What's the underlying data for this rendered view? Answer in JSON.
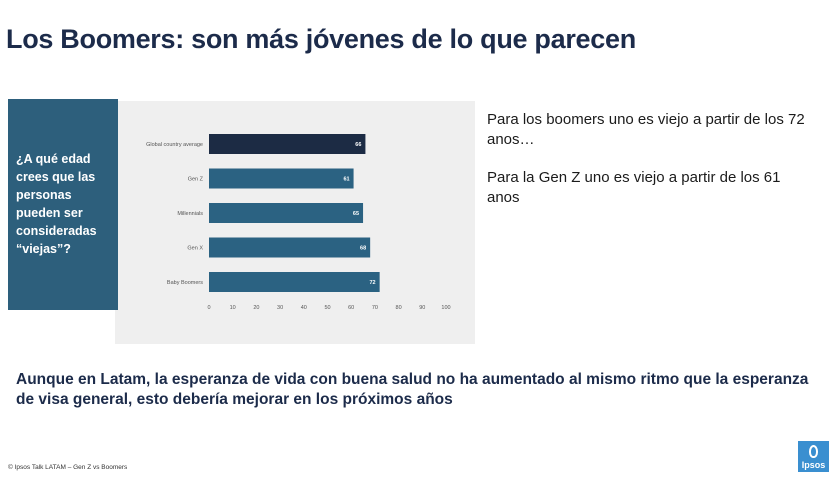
{
  "title": "Los Boomers: son más jóvenes de lo que parecen",
  "question": "¿A qué edad crees que las personas pueden ser consideradas “viejas”?",
  "side_texts": [
    "Para los boomers uno es viejo a partir de los 72 anos…",
    "Para la Gen Z uno es viejo a partir de los 61 anos"
  ],
  "bottom_text": "Aunque en Latam, la esperanza de vida con buena salud no ha aumentado al mismo ritmo que la esperanza de visa general, esto debería mejorar en los próximos años",
  "footer": "© Ipsos Talk LATAM – Gen Z vs Boomers",
  "logo_text": "Ipsos",
  "colors": {
    "question_box": "#2d5f7c",
    "highlight_bar": "#1c2b44",
    "bar": "#2b6282",
    "logo": "#3a8fd0"
  },
  "chart_data": {
    "type": "bar",
    "orientation": "horizontal",
    "categories": [
      "Global country average",
      "Gen Z",
      "Millennials",
      "Gen X",
      "Baby Boomers"
    ],
    "values": [
      66,
      61,
      65,
      68,
      72
    ],
    "value_labels": [
      "66",
      "61",
      "65",
      "68",
      "72"
    ],
    "highlight_index": 0,
    "xlim": [
      0,
      100
    ],
    "xticks": [
      "0",
      "10",
      "20",
      "30",
      "40",
      "50",
      "60",
      "70",
      "80",
      "90",
      "100"
    ],
    "grid": false
  }
}
